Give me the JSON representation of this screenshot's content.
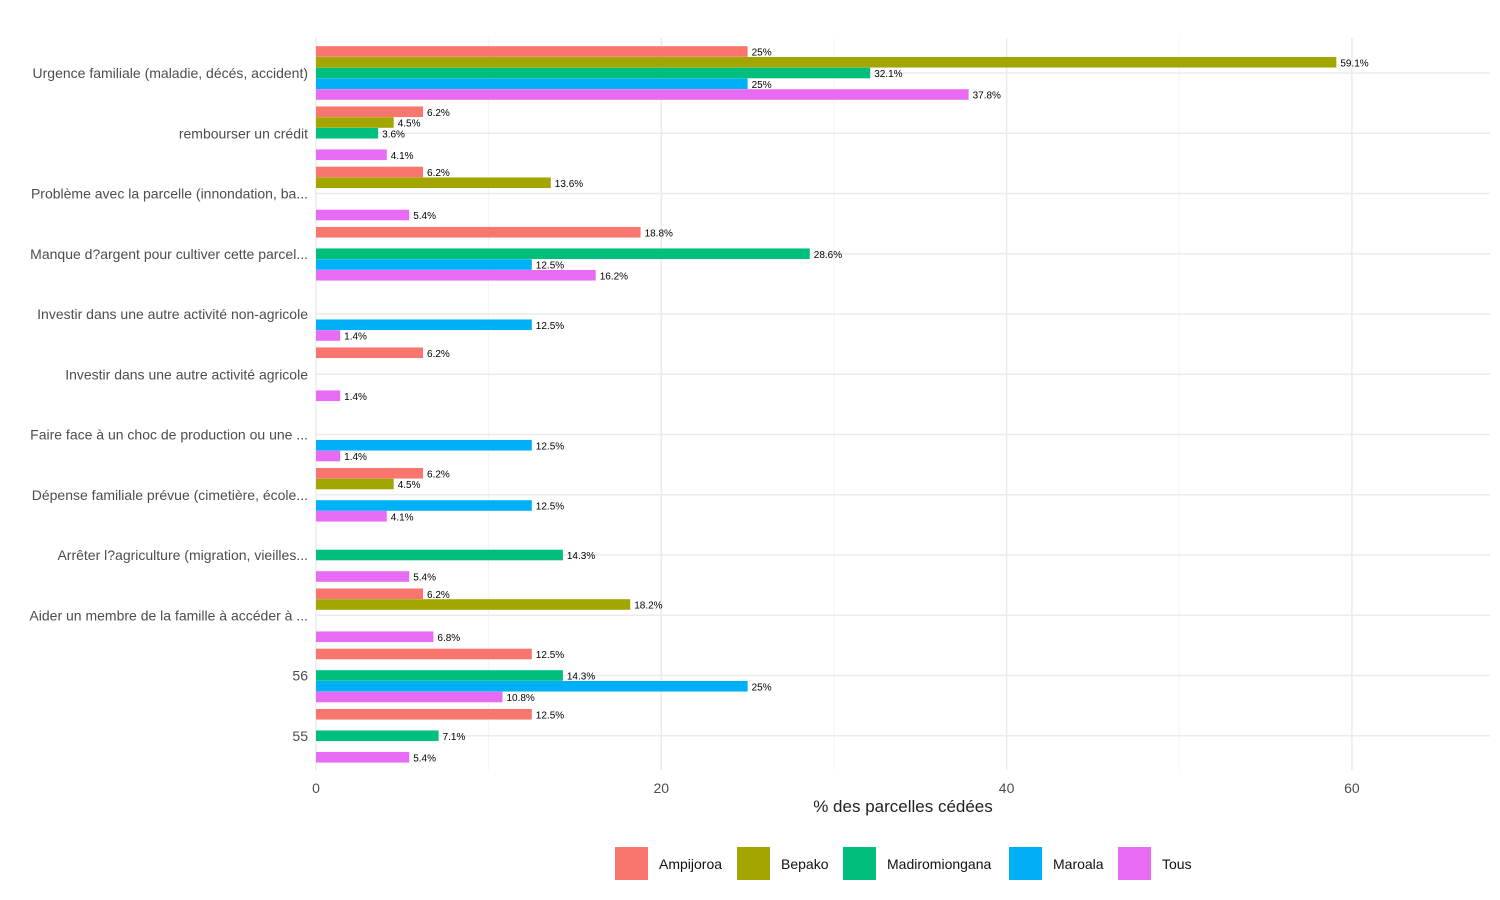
{
  "chart_data": {
    "type": "bar",
    "orientation": "horizontal",
    "title": "",
    "xlabel": "% des parcelles cédées",
    "ylabel": "",
    "xlim": [
      0,
      68
    ],
    "x_ticks": [
      0,
      20,
      40,
      60
    ],
    "grid": true,
    "legend_position": "bottom",
    "categories": [
      "Urgence familiale (maladie, décés, accident)",
      "rembourser un crédit",
      "Problème avec la parcelle (innondation, ba...",
      "Manque d?argent pour cultiver cette parcel...",
      "Investir dans une autre activité non-agricole",
      "Investir dans une autre activité agricole",
      "Faire face à un choc de production ou une ...",
      "Dépense familiale prévue (cimetière, école...",
      "Arrêter l?agriculture (migration, vieilles...",
      "Aider un membre de la famille à accéder à ...",
      "56",
      "55"
    ],
    "series": [
      {
        "name": "Ampijoroa",
        "color": "#F8766D",
        "values": [
          25,
          6.2,
          6.2,
          18.8,
          null,
          6.2,
          null,
          6.2,
          null,
          6.2,
          12.5,
          12.5
        ]
      },
      {
        "name": "Bepako",
        "color": "#A3A500",
        "values": [
          59.1,
          4.5,
          13.6,
          null,
          null,
          null,
          null,
          4.5,
          null,
          18.2,
          null,
          null
        ]
      },
      {
        "name": "Madiromiongana",
        "color": "#00BF7D",
        "values": [
          32.1,
          3.6,
          null,
          28.6,
          null,
          null,
          null,
          null,
          14.3,
          null,
          14.3,
          7.1
        ]
      },
      {
        "name": "Maroala",
        "color": "#00B0F6",
        "values": [
          25,
          null,
          null,
          12.5,
          12.5,
          null,
          12.5,
          12.5,
          null,
          null,
          25,
          null
        ]
      },
      {
        "name": "Tous",
        "color": "#E76BF3",
        "values": [
          37.8,
          4.1,
          5.4,
          16.2,
          1.4,
          1.4,
          1.4,
          4.1,
          5.4,
          6.8,
          10.8,
          5.4
        ]
      }
    ]
  }
}
